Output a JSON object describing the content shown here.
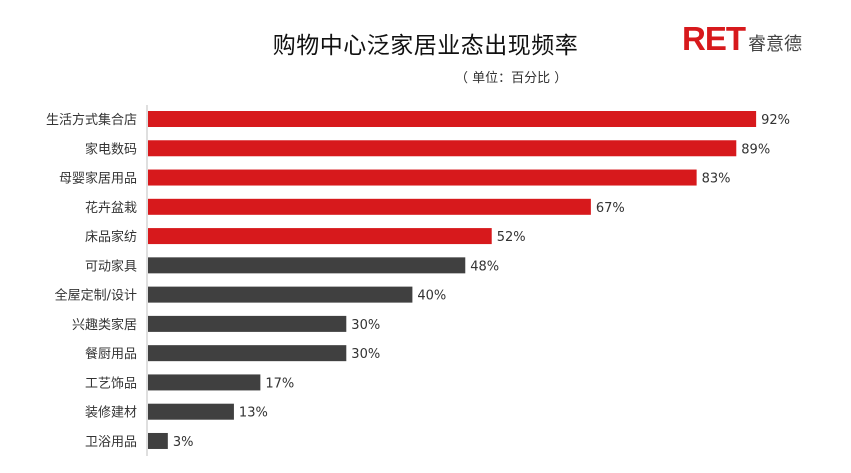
{
  "title": "购物中心泛家居业态出现频率",
  "unit_note": "（ 单位：百分比 ）",
  "logo": {
    "mark": "RET",
    "name": "睿意德"
  },
  "colors": {
    "highlight": "#d7191c",
    "default": "#404040",
    "axis": "#bfbfbf"
  },
  "chart_data": {
    "type": "bar",
    "orientation": "horizontal",
    "title": "购物中心泛家居业态出现频率",
    "unit": "（ 单位：百分比 ）",
    "categories": [
      "生活方式集合店",
      "家电数码",
      "母婴家居用品",
      "花卉盆栽",
      "床品家纺",
      "可动家具",
      "全屋定制/设计",
      "兴趣类家居",
      "餐厨用品",
      "工艺饰品",
      "装修建材",
      "卫浴用品"
    ],
    "values": [
      92,
      89,
      83,
      67,
      52,
      48,
      40,
      30,
      30,
      17,
      13,
      3
    ],
    "labels": [
      "92%",
      "89%",
      "83%",
      "67%",
      "52%",
      "48%",
      "40%",
      "30%",
      "30%",
      "17%",
      "13%",
      "3%"
    ],
    "highlighted_count": 5,
    "xlim": [
      0,
      100
    ],
    "grid": false,
    "legend": "none"
  }
}
